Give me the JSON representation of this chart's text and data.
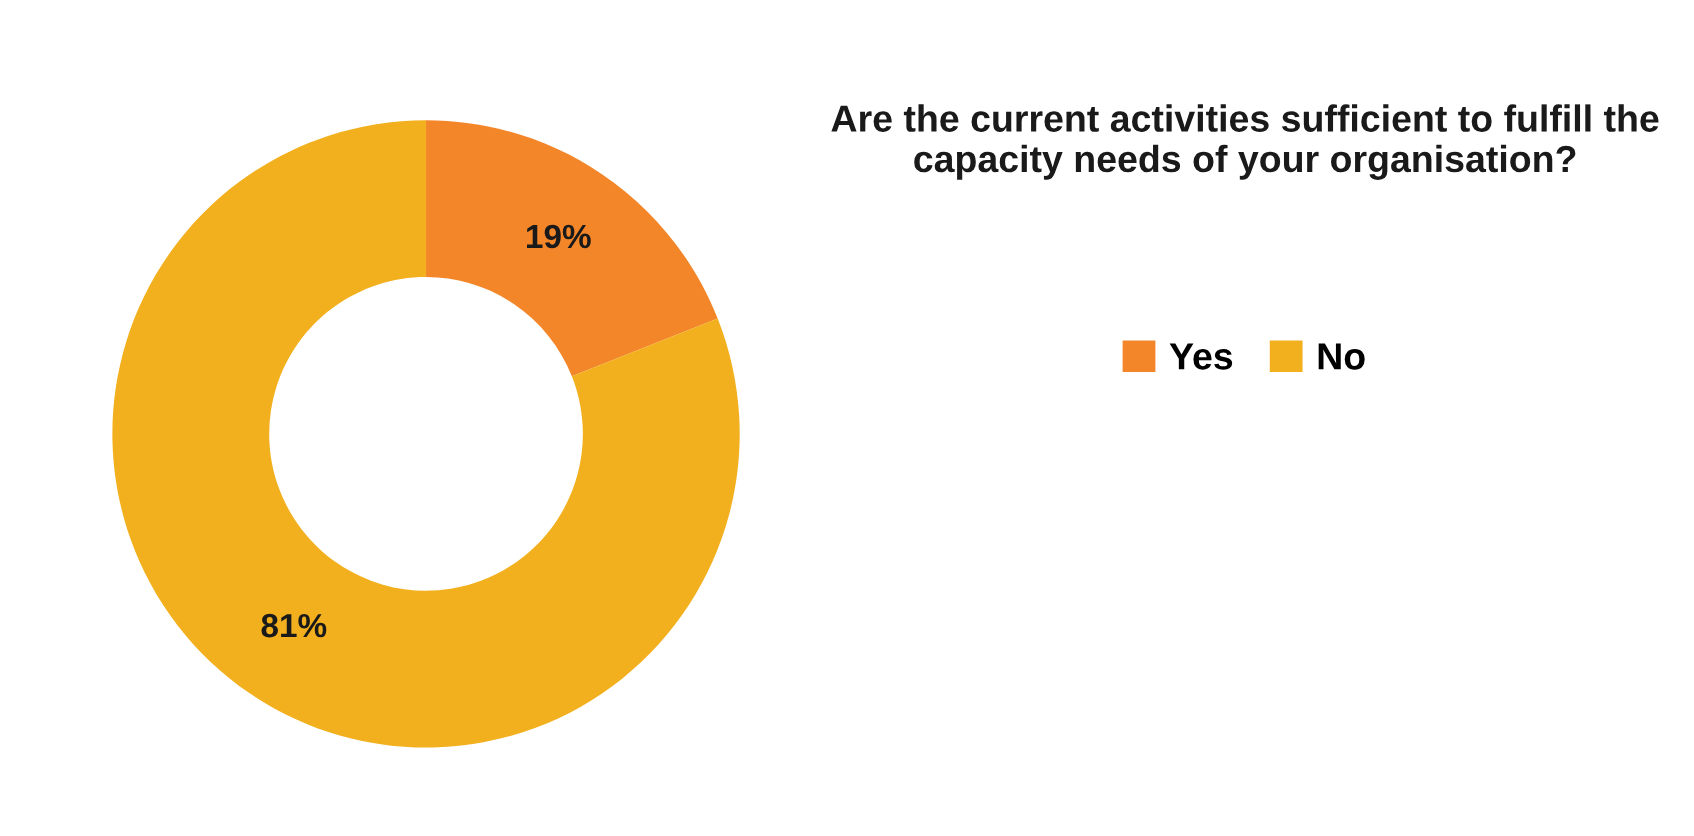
{
  "chart_data": {
    "type": "donut",
    "title": "Are the current activities sufficient to fulfill the capacity needs of your organisation?",
    "categories": [
      "Yes",
      "No"
    ],
    "values": [
      19,
      81
    ],
    "colors": [
      "#f4862a",
      "#f2b01e"
    ],
    "value_labels": [
      "19%",
      "81%"
    ],
    "legend": "right"
  }
}
